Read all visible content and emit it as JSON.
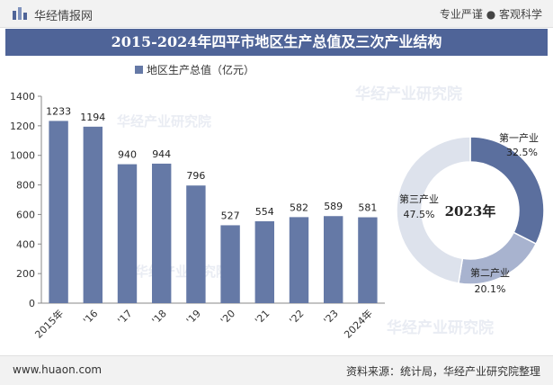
{
  "header": {
    "brand": "华经情报网",
    "tagline": "专业严谨 ● 客观科学"
  },
  "title": "2015-2024年四平市地区生产总值及三次产业结构",
  "footer": {
    "site": "www.huaon.com",
    "source": "资料来源：统计局，华经产业研究院整理"
  },
  "watermark": "华经产业研究院",
  "colors": {
    "bar": "#6579a6",
    "title_bg": "#4f6498",
    "primary": "#5b6f9e",
    "secondary": "#a8b3cf",
    "tertiary": "#dde2ec"
  },
  "chart_data": [
    {
      "type": "bar",
      "legend": "地区生产总值（亿元）",
      "categories": [
        "2015年",
        "'16",
        "'17",
        "'18",
        "'19",
        "'20",
        "'21",
        "'22",
        "'23",
        "2024年"
      ],
      "values": [
        1233,
        1194,
        940,
        944,
        796,
        527,
        554,
        582,
        589,
        581
      ],
      "ylim": [
        0,
        1400
      ],
      "yticks": [
        0,
        200,
        400,
        600,
        800,
        1000,
        1200,
        1400
      ],
      "grid": false,
      "legend_position": "top"
    },
    {
      "type": "pie",
      "center_label": "2023年",
      "slices": [
        {
          "name": "第一产业",
          "value": 32.5,
          "label": "32.5%",
          "color": "#5b6f9e"
        },
        {
          "name": "第二产业",
          "value": 20.1,
          "label": "20.1%",
          "color": "#a8b3cf"
        },
        {
          "name": "第三产业",
          "value": 47.5,
          "label": "47.5%",
          "color": "#dde2ec"
        }
      ]
    }
  ]
}
